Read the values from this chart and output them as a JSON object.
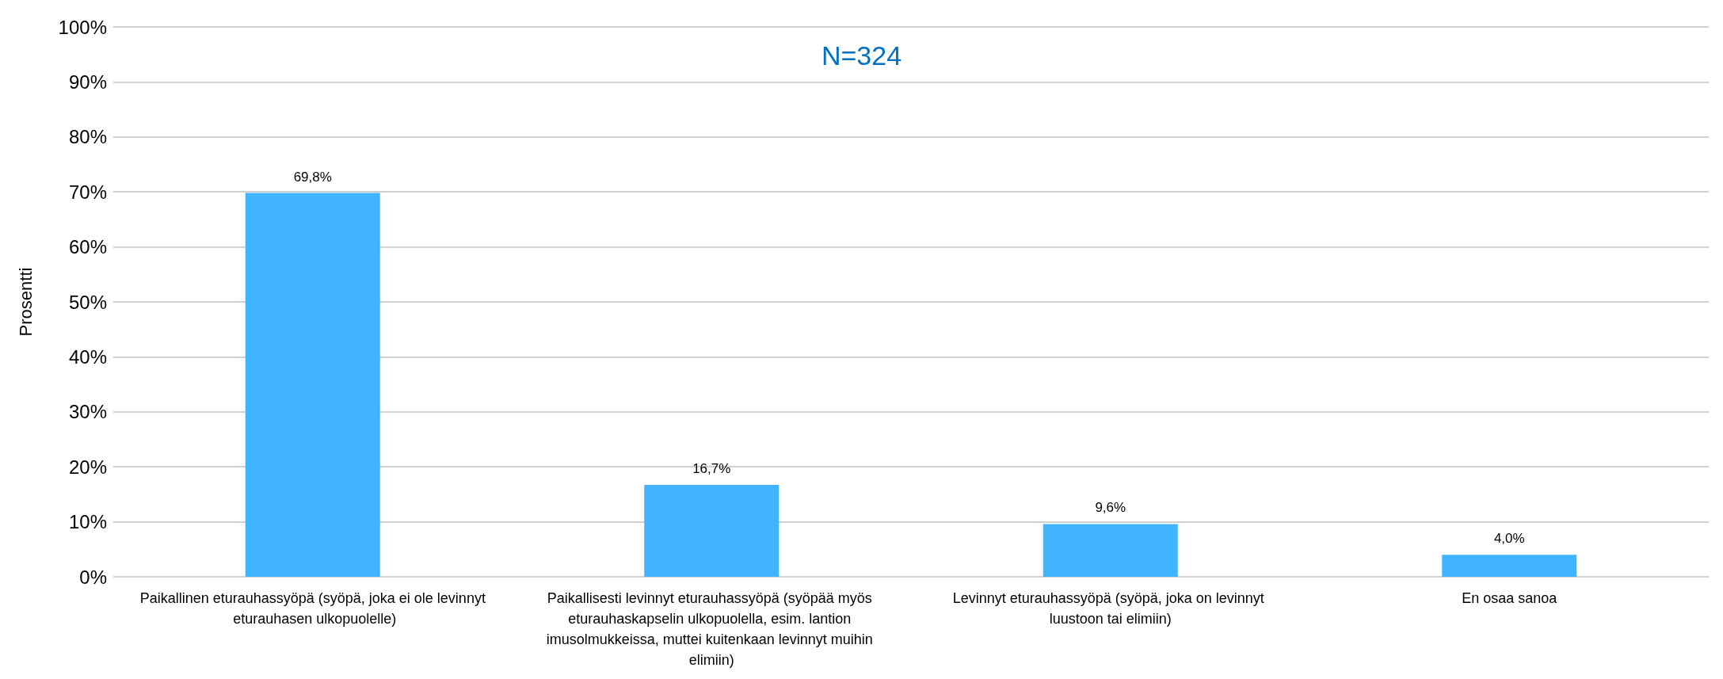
{
  "chart_data": {
    "type": "bar",
    "title": "N=324",
    "ylabel": "Prosentti",
    "categories": [
      "Paikallinen eturauhassyöpä (syöpä, joka ei ole levinnyt eturauhasen ulkopuolelle)",
      "Paikallisesti levinnyt eturauhassyöpä (syöpää myös eturauhaskapselin ulkopuolella, esim. lantion imusolmukkeissa, muttei kuitenkaan levinnyt muihin elimiin)",
      "Levinnyt eturauhassyöpä (syöpä, joka on levinnyt luustoon tai elimiin)",
      "En osaa sanoa"
    ],
    "values": [
      69.8,
      16.7,
      9.6,
      4.0
    ],
    "value_labels": [
      "69,8%",
      "16,7%",
      "9,6%",
      "4,0%"
    ],
    "color": "#41b4ff",
    "ylim": [
      0,
      100
    ],
    "yticks": [
      {
        "value": 0,
        "label": "0%"
      },
      {
        "value": 10,
        "label": "10%"
      },
      {
        "value": 20,
        "label": "20%"
      },
      {
        "value": 30,
        "label": "30%"
      },
      {
        "value": 40,
        "label": "40%"
      },
      {
        "value": 50,
        "label": "50%"
      },
      {
        "value": 60,
        "label": "60%"
      },
      {
        "value": 70,
        "label": "70%"
      },
      {
        "value": 80,
        "label": "80%"
      },
      {
        "value": 90,
        "label": "90%"
      },
      {
        "value": 100,
        "label": "100%"
      }
    ],
    "grid": "y"
  }
}
